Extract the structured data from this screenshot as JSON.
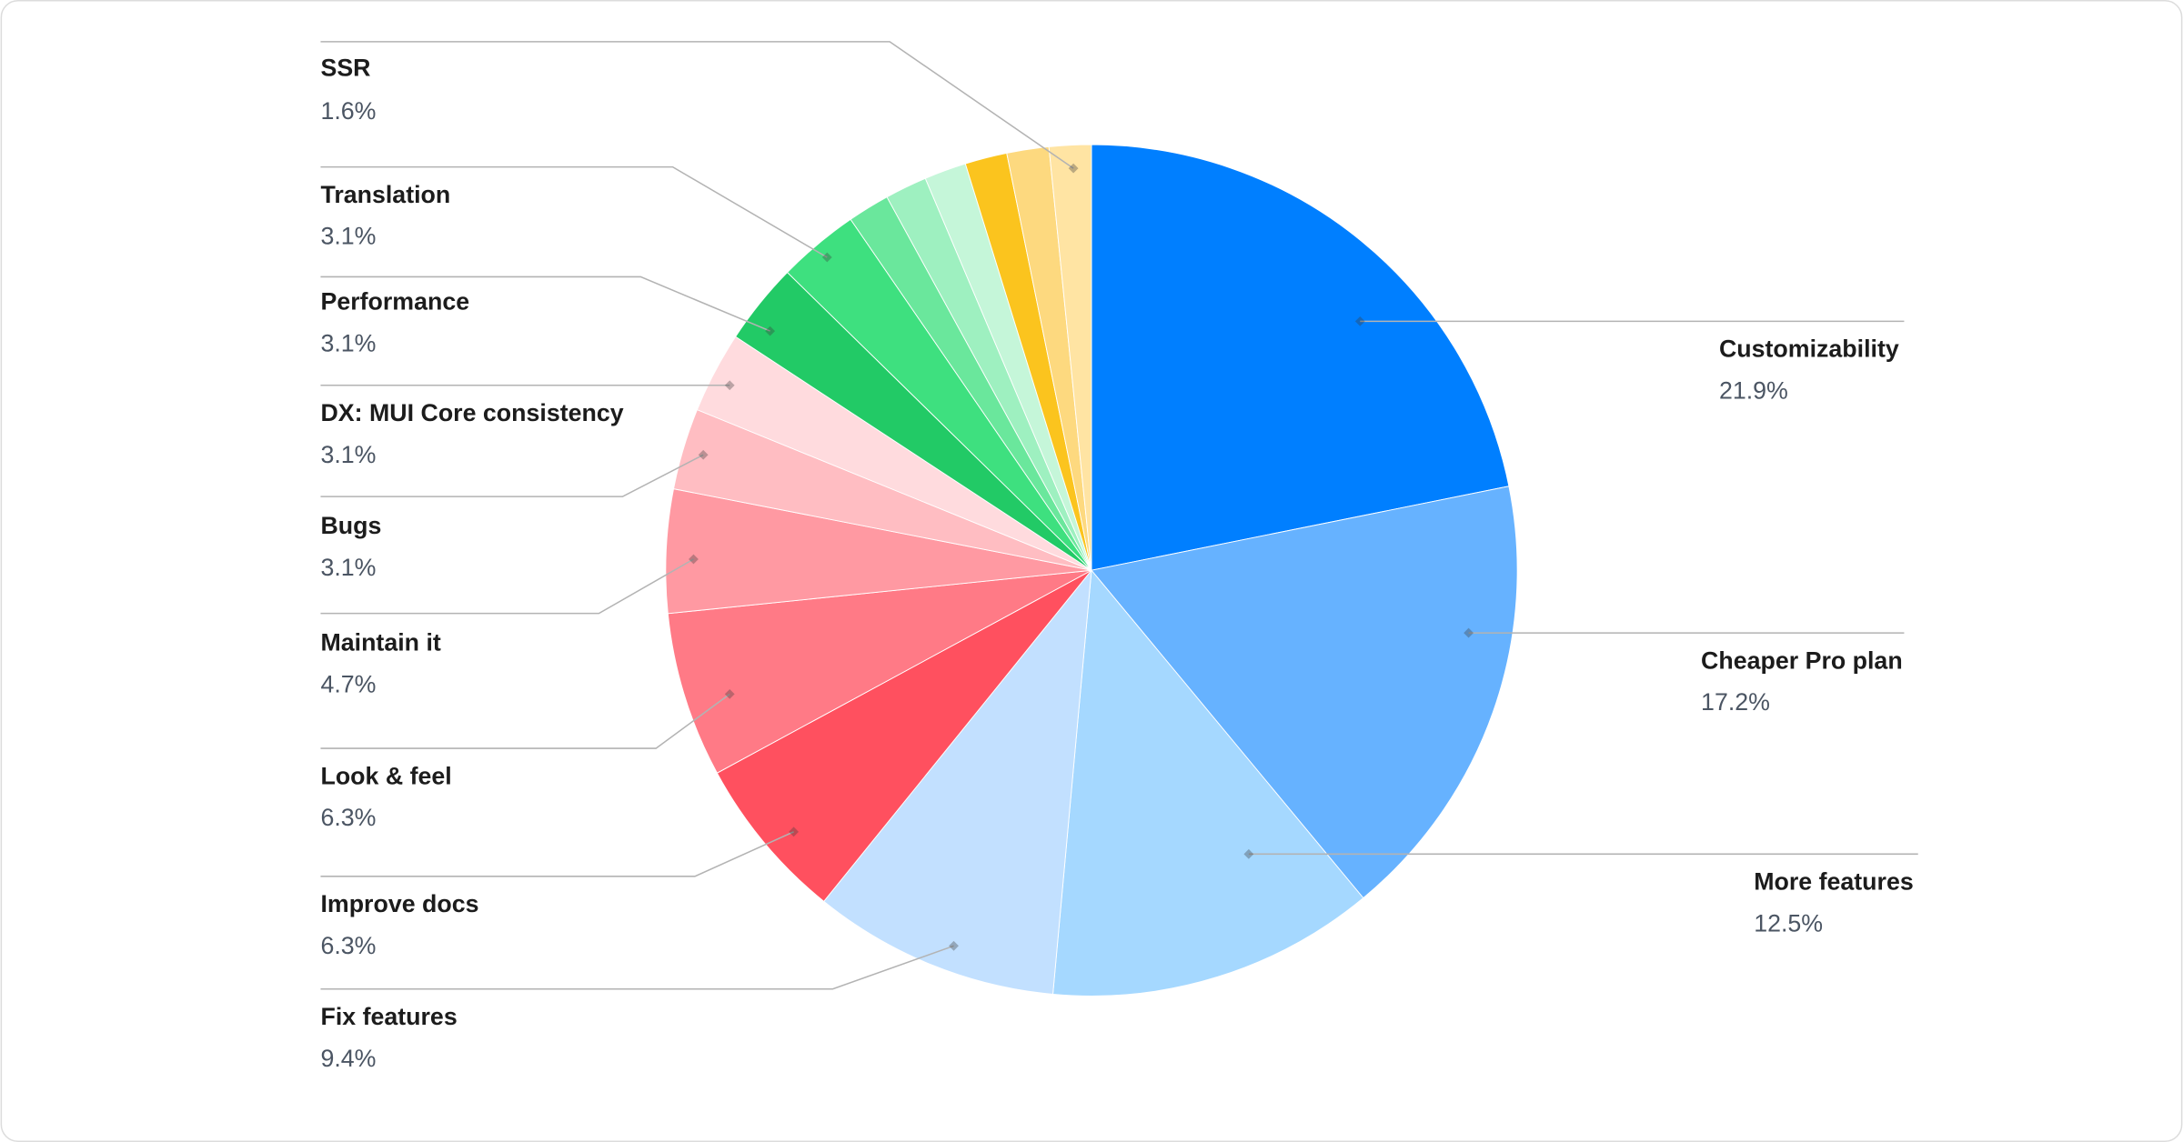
{
  "chart_data": {
    "type": "pie",
    "start": "top",
    "direction": "clockwise",
    "slices": [
      {
        "label": "Customizability",
        "value": 21.9,
        "value_label": "21.9%",
        "color": "#007FFF"
      },
      {
        "label": "Cheaper Pro plan",
        "value": 17.2,
        "value_label": "17.2%",
        "color": "#66B2FF"
      },
      {
        "label": "More features",
        "value": 12.5,
        "value_label": "12.5%",
        "color": "#A5D8FF"
      },
      {
        "label": "Fix features",
        "value": 9.4,
        "value_label": "9.4%",
        "color": "#C2E0FF"
      },
      {
        "label": "Improve docs",
        "value": 6.3,
        "value_label": "6.3%",
        "color": "#FF505F"
      },
      {
        "label": "Look & feel",
        "value": 6.3,
        "value_label": "6.3%",
        "color": "#FF7A86"
      },
      {
        "label": "Maintain it",
        "value": 4.7,
        "value_label": "4.7%",
        "color": "#FF99A2"
      },
      {
        "label": "Bugs",
        "value": 3.1,
        "value_label": "3.1%",
        "color": "#FFBDC2"
      },
      {
        "label": "DX: MUI Core consistency",
        "value": 3.1,
        "value_label": "3.1%",
        "color": "#FFDBDE"
      },
      {
        "label": "Performance",
        "value": 3.1,
        "value_label": "3.1%",
        "color": "#22CA66"
      },
      {
        "label": "Translation",
        "value": 3.1,
        "value_label": "3.1%",
        "color": "#3EE07F"
      },
      {
        "label": null,
        "value": 1.6,
        "color": "#6AE79C"
      },
      {
        "label": null,
        "value": 1.6,
        "color": "#9EF0C0"
      },
      {
        "label": null,
        "value": 1.6,
        "color": "#C5F6D9"
      },
      {
        "label": null,
        "value": 1.6,
        "color": "#FBC41E"
      },
      {
        "label": null,
        "value": 1.6,
        "color": "#FDD97F"
      },
      {
        "label": "SSR",
        "value": 1.6,
        "value_label": "1.6%",
        "color": "#FFE4A3"
      }
    ]
  }
}
